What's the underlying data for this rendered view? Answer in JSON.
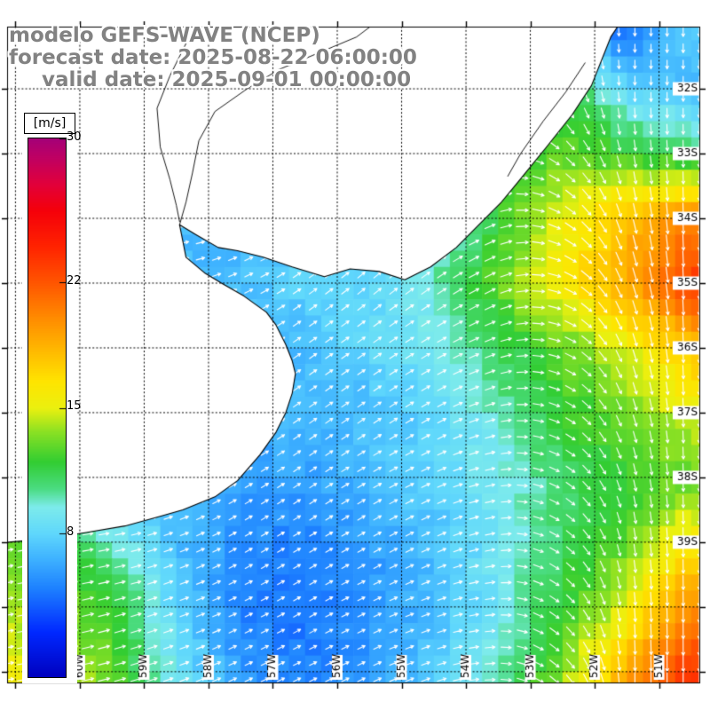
{
  "header": {
    "title": "modelo GEFS-WAVE (NCEP)",
    "forecast_line": "forecast date: 2025-08-22 06:00:00",
    "valid_line": "valid date: 2025-09-01 00:00:00"
  },
  "colorbar": {
    "units_label": "[m/s]",
    "min": 0,
    "max": 30,
    "ticks": [
      "30",
      "22",
      "15",
      "8"
    ],
    "tick_values": [
      30,
      22,
      15,
      8
    ]
  },
  "map": {
    "bounds": {
      "lon_min": -61.13,
      "lon_max": -50.36,
      "lat_min": -41.18,
      "lat_max": -31.04
    },
    "grid_lons": [
      -61,
      -60,
      -59,
      -58,
      -57,
      -56,
      -55,
      -54,
      -53,
      -52,
      -51
    ],
    "grid_lats": [
      -32,
      -33,
      -34,
      -35,
      -36,
      -37,
      -38,
      -39,
      -40,
      -41
    ],
    "lat_labels": [
      {
        "text": "32S",
        "lat": -32
      },
      {
        "text": "33S",
        "lat": -33
      },
      {
        "text": "34S",
        "lat": -34
      },
      {
        "text": "35S",
        "lat": -35
      },
      {
        "text": "36S",
        "lat": -36
      },
      {
        "text": "37S",
        "lat": -37
      },
      {
        "text": "38S",
        "lat": -38
      },
      {
        "text": "39S",
        "lat": -39
      }
    ],
    "lon_labels": [
      {
        "text": "60W",
        "lon": -60
      },
      {
        "text": "59W",
        "lon": -59
      },
      {
        "text": "58W",
        "lon": -58
      },
      {
        "text": "57W",
        "lon": -57
      },
      {
        "text": "56W",
        "lon": -56
      },
      {
        "text": "55W",
        "lon": -55
      },
      {
        "text": "54W",
        "lon": -54
      },
      {
        "text": "53W",
        "lon": -53
      },
      {
        "text": "52W",
        "lon": -52
      },
      {
        "text": "51W",
        "lon": -51
      }
    ]
  },
  "colormap": {
    "stops": [
      [
        0,
        0,
        0,
        190
      ],
      [
        2.5,
        0,
        40,
        255
      ],
      [
        5,
        30,
        130,
        255
      ],
      [
        6.5,
        60,
        175,
        255
      ],
      [
        8,
        95,
        215,
        252
      ],
      [
        9.5,
        125,
        235,
        235
      ],
      [
        10.5,
        75,
        220,
        130
      ],
      [
        12,
        50,
        205,
        50
      ],
      [
        13.7,
        140,
        225,
        35
      ],
      [
        15,
        235,
        240,
        15
      ],
      [
        16.5,
        255,
        228,
        0
      ],
      [
        18,
        255,
        190,
        0
      ],
      [
        20,
        255,
        140,
        0
      ],
      [
        22,
        255,
        85,
        0
      ],
      [
        24,
        255,
        35,
        0
      ],
      [
        26,
        245,
        0,
        10
      ],
      [
        27.5,
        225,
        0,
        60
      ],
      [
        29,
        190,
        0,
        100
      ],
      [
        30,
        165,
        0,
        120
      ]
    ]
  },
  "chart_data": {
    "type": "heatmap",
    "overlay": "direction-arrows",
    "title": "modelo GEFS-WAVE (NCEP)",
    "forecast_date": "2025-08-22 06:00:00",
    "valid_date": "2025-09-01 00:00:00",
    "units": "m/s",
    "value_range": [
      0,
      30
    ],
    "colorbar_ticks": [
      30,
      22,
      15,
      8
    ],
    "x_tick_labels": [
      "60W",
      "59W",
      "58W",
      "57W",
      "56W",
      "55W",
      "54W",
      "53W",
      "52W",
      "51W"
    ],
    "y_tick_labels": [
      "32S",
      "33S",
      "34S",
      "35S",
      "36S",
      "37S",
      "38S",
      "39S"
    ],
    "grid": {
      "lons": [
        -61.5,
        -60.5,
        -59.5,
        -58.5,
        -57.5,
        -56.5,
        -55.5,
        -54.5,
        -53.5,
        -52.5,
        -51.5,
        -50.5
      ],
      "lats": [
        -31,
        -32,
        -33,
        -34,
        -35,
        -36,
        -37,
        -38,
        -39,
        -40,
        -41.2
      ],
      "speed_ms": [
        [
          8,
          8,
          8,
          8,
          8,
          8,
          8,
          8,
          7,
          6,
          4,
          8
        ],
        [
          8,
          8,
          8,
          8,
          8,
          8,
          8,
          8,
          10,
          12,
          8,
          7
        ],
        [
          8,
          8,
          8,
          8,
          8,
          8,
          8,
          9,
          11,
          13,
          12,
          11
        ],
        [
          7,
          7,
          7,
          7,
          7,
          7,
          7,
          8,
          12,
          15,
          18,
          20
        ],
        [
          6,
          6,
          6,
          7,
          7,
          8,
          8,
          10,
          13,
          16,
          19,
          23
        ],
        [
          7,
          7,
          7,
          7,
          7,
          7,
          8,
          9,
          11,
          13,
          15,
          18
        ],
        [
          7,
          7,
          7,
          7,
          6.5,
          7,
          7,
          8,
          10,
          12,
          13,
          15
        ],
        [
          8,
          8,
          7,
          7,
          6,
          6,
          7,
          8,
          9,
          11,
          12,
          13
        ],
        [
          13,
          12,
          10,
          7,
          5.5,
          5,
          6,
          7,
          9,
          11,
          13,
          16
        ],
        [
          14,
          14,
          12,
          8,
          5,
          4.5,
          5.5,
          7,
          9,
          12,
          15,
          20
        ],
        [
          16,
          15,
          13,
          9,
          6,
          5,
          6,
          7.5,
          10,
          14,
          19,
          24
        ]
      ],
      "direction_deg": [
        [
          0,
          0,
          0,
          0,
          0,
          0,
          0,
          0,
          -45,
          -70,
          -90,
          -90
        ],
        [
          0,
          0,
          0,
          0,
          0,
          0,
          0,
          0,
          -30,
          -60,
          -90,
          -90
        ],
        [
          10,
          10,
          10,
          10,
          10,
          15,
          20,
          30,
          10,
          -40,
          -80,
          -90
        ],
        [
          10,
          10,
          10,
          10,
          20,
          30,
          35,
          35,
          20,
          -30,
          -75,
          -90
        ],
        [
          5,
          5,
          5,
          10,
          25,
          35,
          40,
          35,
          25,
          -20,
          -70,
          -90
        ],
        [
          5,
          5,
          5,
          15,
          30,
          35,
          35,
          30,
          20,
          -20,
          -70,
          -90
        ],
        [
          5,
          5,
          5,
          15,
          30,
          35,
          35,
          30,
          15,
          -25,
          -70,
          -90
        ],
        [
          5,
          5,
          10,
          20,
          30,
          35,
          30,
          25,
          10,
          -30,
          -75,
          -90
        ],
        [
          10,
          10,
          10,
          20,
          30,
          30,
          30,
          25,
          10,
          -35,
          -80,
          -90
        ],
        [
          10,
          10,
          15,
          20,
          25,
          30,
          25,
          20,
          5,
          -40,
          -85,
          -90
        ],
        [
          10,
          10,
          15,
          20,
          25,
          25,
          25,
          20,
          0,
          -45,
          -90,
          -90
        ]
      ]
    }
  },
  "geo": {
    "land": [
      [
        -61.5,
        -30.9
      ],
      [
        -51.55,
        -30.9
      ],
      [
        -51.75,
        -31.2
      ],
      [
        -52.05,
        -31.95
      ],
      [
        -52.35,
        -32.4
      ],
      [
        -52.75,
        -32.9
      ],
      [
        -53.2,
        -33.45
      ],
      [
        -53.45,
        -33.75
      ],
      [
        -53.75,
        -34.05
      ],
      [
        -54.15,
        -34.45
      ],
      [
        -54.55,
        -34.75
      ],
      [
        -54.95,
        -34.95
      ],
      [
        -55.35,
        -34.82
      ],
      [
        -55.8,
        -34.78
      ],
      [
        -56.2,
        -34.9
      ],
      [
        -56.7,
        -34.75
      ],
      [
        -57.15,
        -34.6
      ],
      [
        -57.55,
        -34.5
      ],
      [
        -57.85,
        -34.45
      ],
      [
        -58.2,
        -34.25
      ],
      [
        -58.45,
        -34.1
      ],
      [
        -58.4,
        -34.35
      ],
      [
        -58.35,
        -34.6
      ],
      [
        -58.05,
        -34.85
      ],
      [
        -57.8,
        -35.0
      ],
      [
        -57.45,
        -35.2
      ],
      [
        -57.1,
        -35.45
      ],
      [
        -56.95,
        -35.65
      ],
      [
        -56.8,
        -35.95
      ],
      [
        -56.7,
        -36.2
      ],
      [
        -56.65,
        -36.4
      ],
      [
        -56.7,
        -36.7
      ],
      [
        -56.8,
        -37.0
      ],
      [
        -56.95,
        -37.3
      ],
      [
        -57.2,
        -37.65
      ],
      [
        -57.55,
        -38.05
      ],
      [
        -57.9,
        -38.3
      ],
      [
        -58.4,
        -38.5
      ],
      [
        -58.75,
        -38.6
      ],
      [
        -59.3,
        -38.75
      ],
      [
        -59.9,
        -38.85
      ],
      [
        -60.55,
        -38.95
      ],
      [
        -61.1,
        -39.0
      ],
      [
        -61.5,
        -39.1
      ]
    ],
    "rivers": [
      [
        [
          -55.3,
          -30.9
        ],
        [
          -55.7,
          -31.2
        ],
        [
          -56.3,
          -31.45
        ],
        [
          -56.9,
          -31.7
        ],
        [
          -57.4,
          -32.0
        ],
        [
          -57.9,
          -32.35
        ],
        [
          -58.15,
          -32.8
        ],
        [
          -58.25,
          -33.3
        ],
        [
          -58.35,
          -33.75
        ],
        [
          -58.45,
          -34.1
        ]
      ],
      [
        [
          -58.55,
          -30.9
        ],
        [
          -58.35,
          -31.3
        ],
        [
          -58.6,
          -31.8
        ],
        [
          -58.8,
          -32.3
        ],
        [
          -58.75,
          -32.9
        ],
        [
          -58.6,
          -33.4
        ],
        [
          -58.5,
          -33.8
        ],
        [
          -58.45,
          -34.05
        ]
      ]
    ],
    "lakes": [
      [
        [
          -52.15,
          -31.6
        ],
        [
          -52.45,
          -32.05
        ],
        [
          -52.8,
          -32.5
        ],
        [
          -53.15,
          -33.0
        ],
        [
          -53.35,
          -33.35
        ]
      ]
    ]
  }
}
